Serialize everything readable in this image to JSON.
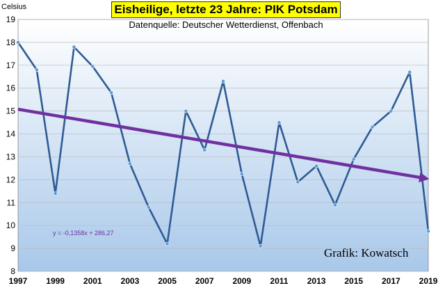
{
  "chart_data": {
    "type": "line",
    "title": "Eisheilige, letzte 23 Jahre: PIK Potsdam",
    "subtitle": "Datenquelle: Deutscher Wetterdienst, Offenbach",
    "ylabel": "Celsius",
    "xlabel": "",
    "credit": "Grafik: Kowatsch",
    "trend_equation": "y = -0,1358x + 286,27",
    "x": [
      1997,
      1998,
      1999,
      2000,
      2001,
      2002,
      2003,
      2004,
      2005,
      2006,
      2007,
      2008,
      2009,
      2010,
      2011,
      2012,
      2013,
      2014,
      2015,
      2016,
      2017,
      2018,
      2019
    ],
    "series": [
      {
        "values": [
          18.0,
          16.8,
          11.4,
          17.8,
          16.95,
          15.8,
          12.7,
          10.8,
          9.2,
          15.0,
          13.3,
          16.3,
          12.25,
          9.1,
          14.5,
          11.9,
          12.6,
          10.9,
          12.9,
          14.3,
          15.0,
          16.7,
          9.75
        ]
      }
    ],
    "trend": {
      "slope": -0.1358,
      "intercept": 286.27
    },
    "xticks": [
      1997,
      1999,
      2001,
      2003,
      2005,
      2007,
      2009,
      2011,
      2013,
      2015,
      2017,
      2019
    ],
    "yticks": [
      8,
      9,
      10,
      11,
      12,
      13,
      14,
      15,
      16,
      17,
      18,
      19
    ],
    "xlim": [
      1997,
      2019
    ],
    "ylim": [
      8,
      19
    ],
    "grid": true,
    "colors": {
      "line": "#2e5a94",
      "marker": "#5b9bd5",
      "trend": "#7030a0",
      "title_bg": "#ffff00",
      "plot_top": "#ffffff",
      "plot_bottom": "#a8c8ea"
    }
  }
}
